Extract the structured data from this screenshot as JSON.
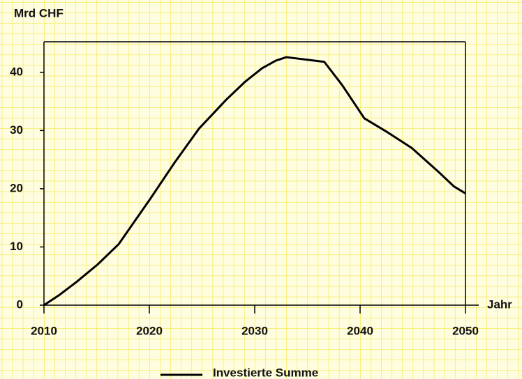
{
  "chart_data": {
    "type": "line",
    "y_axis_label": "Mrd CHF",
    "x_axis_label": "Jahr",
    "x": [
      2010,
      2011.5,
      2013.1,
      2015.1,
      2017.1,
      2020.1,
      2022.4,
      2024.7,
      2027.3,
      2029.1,
      2030.7,
      2032,
      2033,
      2036.6,
      2038.3,
      2040.4,
      2042.6,
      2044.9,
      2047.5,
      2048.9,
      2050
    ],
    "series": [
      {
        "name": "Investierte Summe",
        "color": "#000000",
        "values": [
          0,
          1.8,
          4.0,
          7.0,
          10.5,
          18.3,
          24.5,
          30.3,
          35.3,
          38.4,
          40.7,
          42,
          42.6,
          41.8,
          37.8,
          32.1,
          29.7,
          27,
          22.8,
          20.4,
          19.2
        ]
      }
    ],
    "xlim": [
      2010,
      2050
    ],
    "xticks": [
      2010,
      2020,
      2030,
      2040,
      2050
    ],
    "ylim": [
      0,
      45
    ],
    "yticks": [
      0,
      10,
      20,
      30,
      40
    ]
  }
}
